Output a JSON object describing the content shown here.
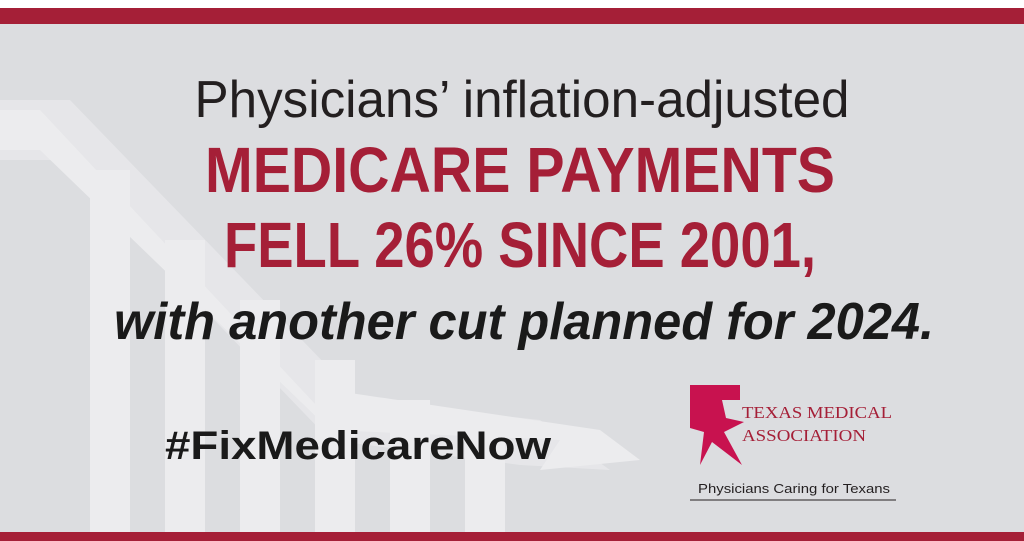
{
  "headline": {
    "line1": "Physicians’ inflation-adjusted",
    "line2": "MEDICARE PAYMENTS",
    "line3": "FELL 26% SINCE 2001,",
    "line4": "with another cut planned for 2024."
  },
  "hashtag": "#FixMedicareNow",
  "logo": {
    "name_line1": "TEXAS MEDICAL",
    "name_line2": "ASSOCIATION",
    "tagline": "Physicians Caring for Texans"
  }
}
